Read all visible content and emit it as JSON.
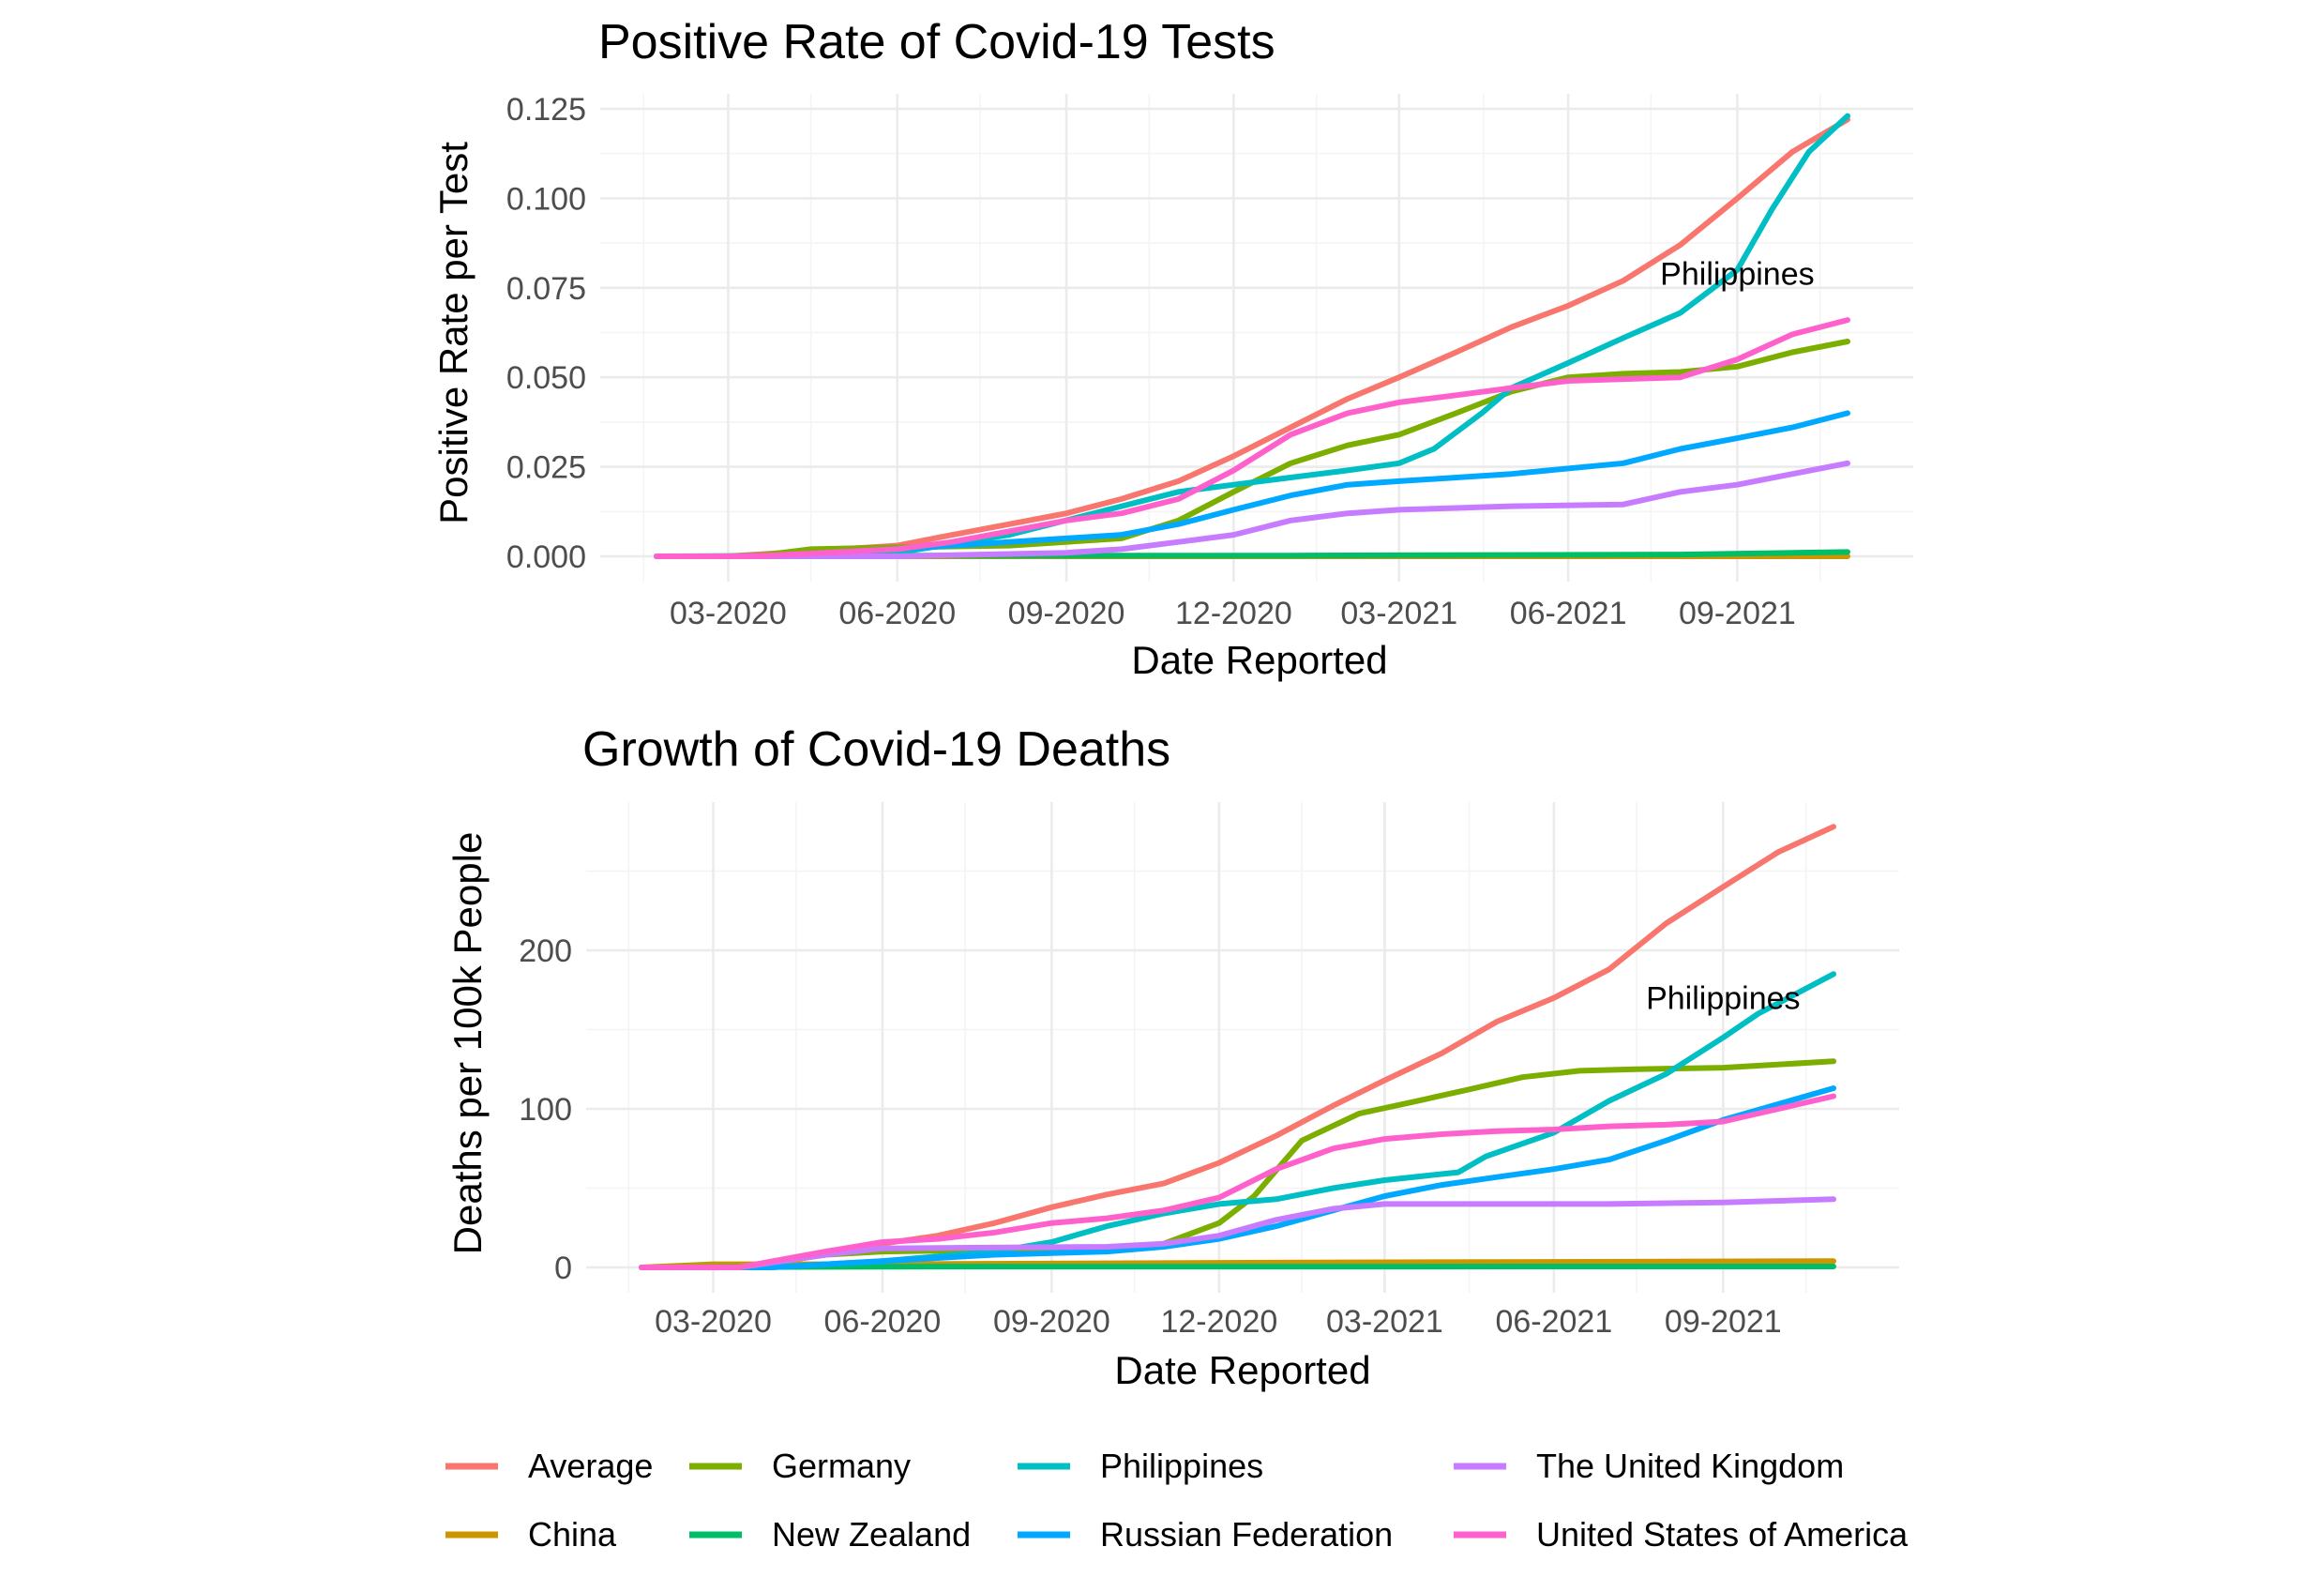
{
  "colors": {
    "Average": "#F8766D",
    "China": "#CD9600",
    "Germany": "#7CAE00",
    "New Zealand": "#00BE67",
    "Philippines": "#00BFC4",
    "Russian Federation": "#00A9FF",
    "The United Kingdom": "#C77CFF",
    "United States of America": "#FF61CC"
  },
  "legend": {
    "position": "bottom",
    "items": [
      "Average",
      "China",
      "Germany",
      "New Zealand",
      "Philippines",
      "Russian Federation",
      "The United Kingdom",
      "United States of America"
    ]
  },
  "chart_data": [
    {
      "type": "line",
      "title": "Positive Rate of Covid-19 Tests",
      "xlabel": "Date Reported",
      "ylabel": "Positive Rate per Test",
      "x_ticks": [
        "03-2020",
        "06-2020",
        "09-2020",
        "12-2020",
        "03-2021",
        "06-2021",
        "09-2021"
      ],
      "y_ticks": [
        "0.000",
        "0.025",
        "0.050",
        "0.075",
        "0.100",
        "0.125"
      ],
      "ylim": [
        0,
        0.125
      ],
      "xlim": [
        "2020-01-22",
        "2021-10-31"
      ],
      "grid": true,
      "annotation": {
        "text": "Philippines",
        "x": "2021-09-01",
        "y": 0.079
      },
      "series": [
        {
          "name": "Average",
          "x": [
            "2020-01-22",
            "2020-03-01",
            "2020-05-01",
            "2020-06-01",
            "2020-07-01",
            "2020-08-01",
            "2020-09-01",
            "2020-10-01",
            "2020-11-01",
            "2020-12-01",
            "2021-01-01",
            "2021-02-01",
            "2021-03-01",
            "2021-04-01",
            "2021-05-01",
            "2021-06-01",
            "2021-07-01",
            "2021-08-01",
            "2021-09-01",
            "2021-10-01",
            "2021-10-31"
          ],
          "y": [
            0,
            0,
            0.002,
            0.003,
            0.006,
            0.009,
            0.012,
            0.016,
            0.021,
            0.028,
            0.036,
            0.044,
            0.05,
            0.057,
            0.064,
            0.07,
            0.077,
            0.087,
            0.1,
            0.113,
            0.122
          ]
        },
        {
          "name": "China",
          "x": [
            "2020-01-22",
            "2020-06-01",
            "2021-01-01",
            "2021-10-31"
          ],
          "y": [
            0,
            0,
            0,
            0
          ]
        },
        {
          "name": "Germany",
          "x": [
            "2020-01-22",
            "2020-03-15",
            "2020-04-15",
            "2020-06-01",
            "2020-08-01",
            "2020-10-01",
            "2020-11-01",
            "2020-12-01",
            "2021-01-01",
            "2021-02-01",
            "2021-03-01",
            "2021-04-01",
            "2021-05-01",
            "2021-06-01",
            "2021-07-01",
            "2021-08-01",
            "2021-09-01",
            "2021-10-01",
            "2021-10-31"
          ],
          "y": [
            0,
            0,
            0.002,
            0.0025,
            0.003,
            0.005,
            0.01,
            0.018,
            0.026,
            0.031,
            0.034,
            0.04,
            0.046,
            0.05,
            0.051,
            0.0515,
            0.053,
            0.057,
            0.06
          ]
        },
        {
          "name": "New Zealand",
          "x": [
            "2020-01-22",
            "2020-06-01",
            "2021-01-01",
            "2021-08-01",
            "2021-10-31"
          ],
          "y": [
            0,
            0.0002,
            0.0002,
            0.0005,
            0.0012
          ]
        },
        {
          "name": "Philippines",
          "x": [
            "2020-01-22",
            "2020-03-15",
            "2020-06-01",
            "2020-08-01",
            "2020-10-01",
            "2020-11-01",
            "2020-12-01",
            "2021-01-01",
            "2021-02-01",
            "2021-03-01",
            "2021-03-20",
            "2021-04-15",
            "2021-05-01",
            "2021-06-01",
            "2021-07-01",
            "2021-08-01",
            "2021-09-01",
            "2021-09-20",
            "2021-10-10",
            "2021-10-31"
          ],
          "y": [
            0,
            0,
            0.001,
            0.006,
            0.014,
            0.018,
            0.02,
            0.022,
            0.024,
            0.026,
            0.03,
            0.04,
            0.047,
            0.054,
            0.061,
            0.068,
            0.08,
            0.097,
            0.113,
            0.123
          ]
        },
        {
          "name": "Russian Federation",
          "x": [
            "2020-01-22",
            "2020-04-01",
            "2020-06-01",
            "2020-08-01",
            "2020-10-01",
            "2020-11-01",
            "2020-12-01",
            "2021-01-01",
            "2021-02-01",
            "2021-03-01",
            "2021-05-01",
            "2021-07-01",
            "2021-08-01",
            "2021-09-01",
            "2021-10-01",
            "2021-10-31"
          ],
          "y": [
            0,
            0,
            0.002,
            0.004,
            0.006,
            0.009,
            0.013,
            0.017,
            0.02,
            0.021,
            0.023,
            0.026,
            0.03,
            0.033,
            0.036,
            0.04
          ]
        },
        {
          "name": "The United Kingdom",
          "x": [
            "2020-01-22",
            "2020-06-01",
            "2020-09-01",
            "2020-10-01",
            "2020-11-01",
            "2020-12-01",
            "2021-01-01",
            "2021-02-01",
            "2021-03-01",
            "2021-05-01",
            "2021-07-01",
            "2021-08-01",
            "2021-09-01",
            "2021-10-01",
            "2021-10-31"
          ],
          "y": [
            0,
            0,
            0.001,
            0.002,
            0.004,
            0.006,
            0.01,
            0.012,
            0.013,
            0.014,
            0.0145,
            0.018,
            0.02,
            0.023,
            0.026
          ]
        },
        {
          "name": "United States of America",
          "x": [
            "2020-01-22",
            "2020-03-15",
            "2020-06-01",
            "2020-07-01",
            "2020-08-01",
            "2020-09-01",
            "2020-10-01",
            "2020-11-01",
            "2020-12-01",
            "2021-01-01",
            "2021-02-01",
            "2021-03-01",
            "2021-04-01",
            "2021-05-01",
            "2021-06-01",
            "2021-07-01",
            "2021-08-01",
            "2021-09-01",
            "2021-10-01",
            "2021-10-31"
          ],
          "y": [
            0,
            0,
            0.002,
            0.004,
            0.007,
            0.01,
            0.012,
            0.016,
            0.024,
            0.034,
            0.04,
            0.043,
            0.045,
            0.047,
            0.049,
            0.0495,
            0.05,
            0.055,
            0.062,
            0.066
          ]
        }
      ]
    },
    {
      "type": "line",
      "title": "Growth of Covid-19 Deaths",
      "xlabel": "Date Reported",
      "ylabel": "Deaths per 100k People",
      "x_ticks": [
        "03-2020",
        "06-2020",
        "09-2020",
        "12-2020",
        "03-2021",
        "06-2021",
        "09-2021"
      ],
      "y_ticks": [
        "0",
        "100",
        "200"
      ],
      "ylim": [
        -25,
        290
      ],
      "xlim": [
        "2020-01-22",
        "2021-10-31"
      ],
      "grid": true,
      "annotation": {
        "text": "Philippines",
        "x": "2021-09-01",
        "y": 170
      },
      "series": [
        {
          "name": "Average",
          "x": [
            "2020-01-22",
            "2020-03-15",
            "2020-05-01",
            "2020-06-01",
            "2020-07-01",
            "2020-08-01",
            "2020-09-01",
            "2020-10-01",
            "2020-11-01",
            "2020-12-01",
            "2021-01-01",
            "2021-02-01",
            "2021-03-01",
            "2021-04-01",
            "2021-05-01",
            "2021-06-01",
            "2021-07-01",
            "2021-08-01",
            "2021-09-01",
            "2021-10-01",
            "2021-10-31"
          ],
          "y": [
            0,
            0,
            8,
            15,
            20,
            28,
            38,
            46,
            53,
            66,
            83,
            102,
            118,
            135,
            155,
            170,
            188,
            217,
            240,
            262,
            278
          ]
        },
        {
          "name": "China",
          "x": [
            "2020-01-22",
            "2020-03-01",
            "2020-06-01",
            "2021-01-01",
            "2021-10-31"
          ],
          "y": [
            0,
            2,
            2,
            3,
            4
          ]
        },
        {
          "name": "Germany",
          "x": [
            "2020-01-22",
            "2020-03-15",
            "2020-05-01",
            "2020-06-01",
            "2020-08-01",
            "2020-10-01",
            "2020-11-01",
            "2020-12-01",
            "2020-12-20",
            "2021-01-15",
            "2021-02-15",
            "2021-03-15",
            "2021-04-15",
            "2021-05-15",
            "2021-06-15",
            "2021-07-15",
            "2021-09-01",
            "2021-10-31"
          ],
          "y": [
            0,
            0,
            8,
            10,
            11,
            12,
            15,
            28,
            45,
            80,
            97,
            104,
            112,
            120,
            124,
            125,
            126,
            130
          ]
        },
        {
          "name": "New Zealand",
          "x": [
            "2020-01-22",
            "2020-06-01",
            "2021-10-31"
          ],
          "y": [
            0,
            0.5,
            0.6
          ]
        },
        {
          "name": "Philippines",
          "x": [
            "2020-01-22",
            "2020-04-01",
            "2020-06-01",
            "2020-08-01",
            "2020-09-01",
            "2020-10-01",
            "2020-11-01",
            "2020-12-01",
            "2021-01-01",
            "2021-02-01",
            "2021-03-01",
            "2021-04-10",
            "2021-04-25",
            "2021-06-01",
            "2021-07-01",
            "2021-08-01",
            "2021-09-01",
            "2021-09-20",
            "2021-10-31"
          ],
          "y": [
            0,
            0,
            4,
            10,
            16,
            26,
            34,
            40,
            43,
            50,
            55,
            60,
            70,
            85,
            105,
            122,
            145,
            160,
            185
          ]
        },
        {
          "name": "Russian Federation",
          "x": [
            "2020-01-22",
            "2020-04-01",
            "2020-06-01",
            "2020-08-01",
            "2020-10-01",
            "2020-11-01",
            "2020-12-01",
            "2021-01-01",
            "2021-02-01",
            "2021-03-01",
            "2021-04-01",
            "2021-05-01",
            "2021-06-01",
            "2021-07-01",
            "2021-08-01",
            "2021-09-01",
            "2021-10-01",
            "2021-10-31"
          ],
          "y": [
            0,
            0,
            4,
            8,
            10,
            13,
            18,
            26,
            36,
            45,
            52,
            57,
            62,
            68,
            80,
            93,
            103,
            113
          ]
        },
        {
          "name": "The United Kingdom",
          "x": [
            "2020-01-22",
            "2020-03-15",
            "2020-05-01",
            "2020-06-01",
            "2020-10-01",
            "2020-11-01",
            "2020-12-01",
            "2021-01-01",
            "2021-02-01",
            "2021-03-01",
            "2021-05-01",
            "2021-07-01",
            "2021-09-01",
            "2021-10-31"
          ],
          "y": [
            0,
            0,
            8,
            12,
            13,
            15,
            20,
            30,
            37,
            40,
            40,
            40,
            41,
            43
          ]
        },
        {
          "name": "United States of America",
          "x": [
            "2020-01-22",
            "2020-03-15",
            "2020-05-01",
            "2020-06-01",
            "2020-07-01",
            "2020-08-01",
            "2020-09-01",
            "2020-10-01",
            "2020-11-01",
            "2020-12-01",
            "2021-01-01",
            "2021-02-01",
            "2021-03-01",
            "2021-04-01",
            "2021-05-01",
            "2021-06-01",
            "2021-07-01",
            "2021-08-01",
            "2021-09-01",
            "2021-10-01",
            "2021-10-31"
          ],
          "y": [
            0,
            0,
            10,
            16,
            18,
            22,
            28,
            31,
            36,
            44,
            62,
            75,
            81,
            84,
            86,
            87,
            89,
            90,
            92,
            100,
            108
          ]
        }
      ]
    }
  ]
}
